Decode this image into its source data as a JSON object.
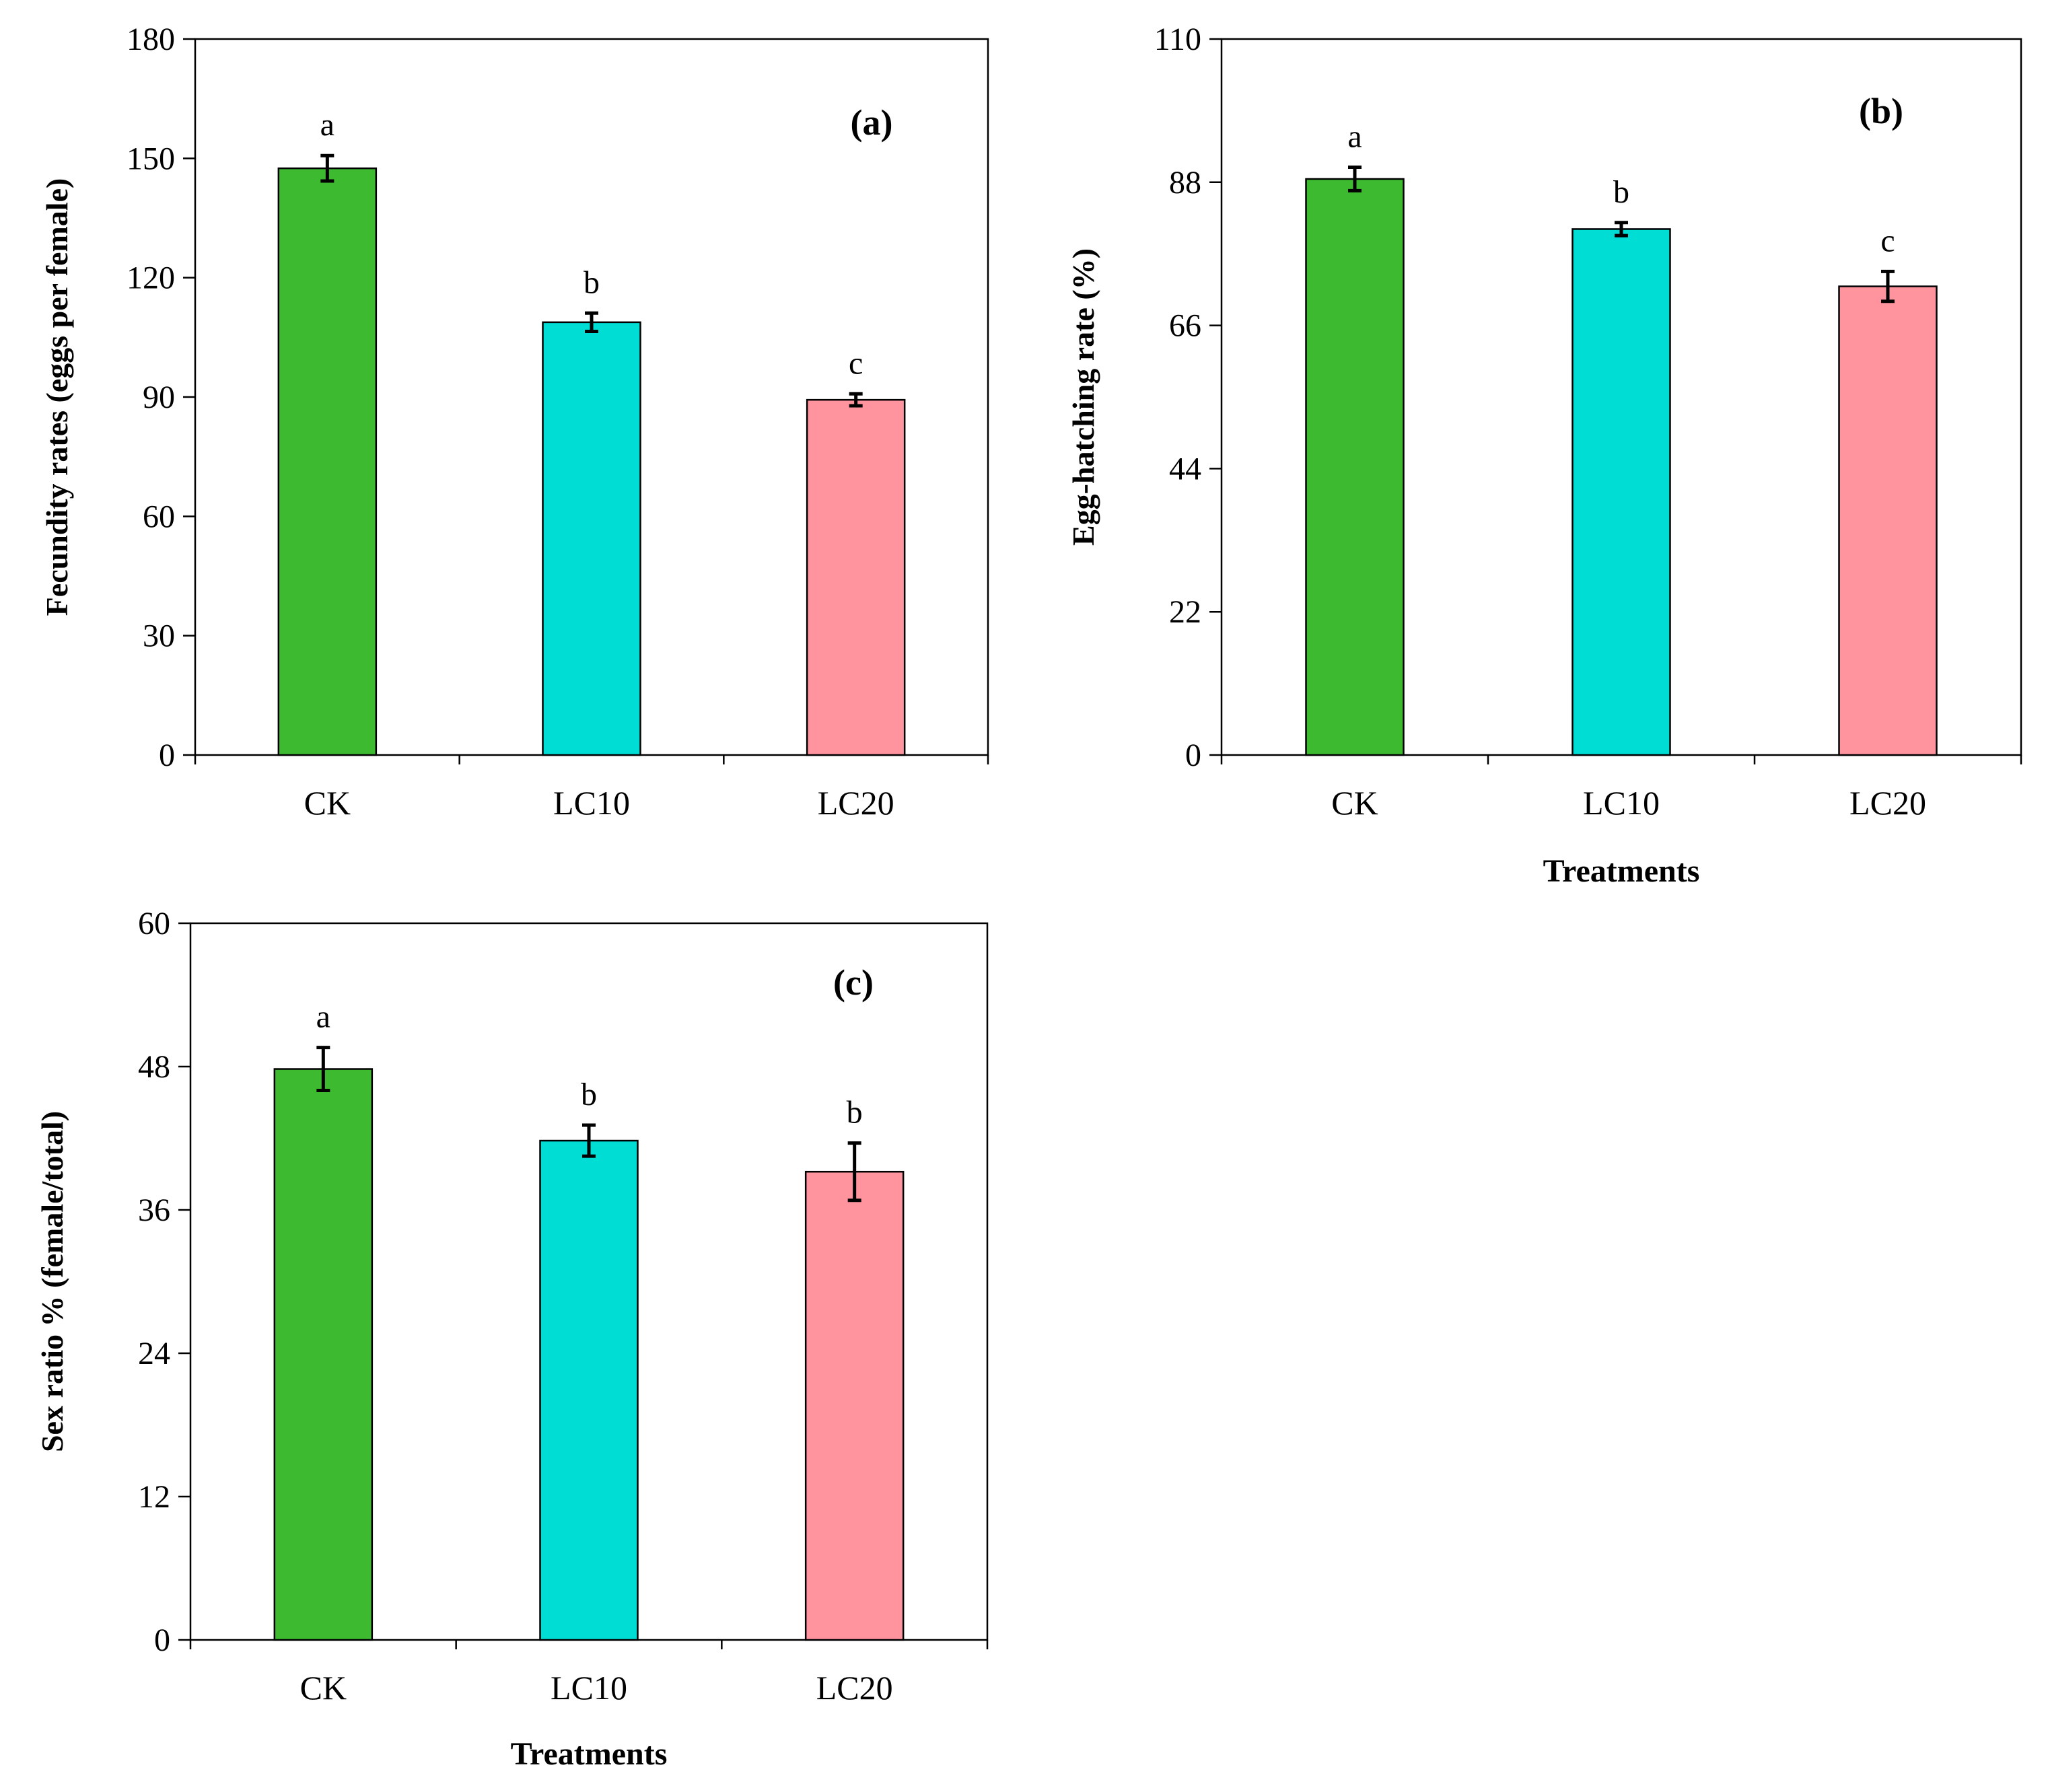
{
  "chart_data": [
    {
      "type": "bar",
      "panel": "(a)",
      "categories": [
        "CK",
        "LC10",
        "LC20"
      ],
      "values": [
        147.5,
        108.8,
        89.3
      ],
      "errors": [
        3.2,
        2.3,
        1.5
      ],
      "letters": [
        "a",
        "b",
        "c"
      ],
      "ylabel": "Fecundity rates (eggs per female)",
      "xlabel": "",
      "ylim": [
        0,
        180
      ],
      "yticks": [
        "0",
        "30",
        "60",
        "90",
        "120",
        "150",
        "180"
      ],
      "colors": [
        "#3dba30",
        "#00ddd4",
        "#ff949e"
      ]
    },
    {
      "type": "bar",
      "panel": "(b)",
      "categories": [
        "CK",
        "LC10",
        "LC20"
      ],
      "values": [
        88.5,
        80.8,
        72.0
      ],
      "errors": [
        1.8,
        1.0,
        2.3
      ],
      "letters": [
        "a",
        "b",
        "c"
      ],
      "ylabel": "Egg-hatching rate (%)",
      "xlabel": "Treatments",
      "ylim": [
        0,
        110
      ],
      "yticks": [
        "0",
        "22",
        "44",
        "66",
        "88",
        "110"
      ],
      "colors": [
        "#3dba30",
        "#00ddd4",
        "#ff949e"
      ]
    },
    {
      "type": "bar",
      "panel": "(c)",
      "categories": [
        "CK",
        "LC10",
        "LC20"
      ],
      "values": [
        47.8,
        41.8,
        39.2
      ],
      "errors": [
        1.8,
        1.3,
        2.4
      ],
      "letters": [
        "a",
        "b",
        "b"
      ],
      "ylabel": "Sex ratio % (female/total)",
      "xlabel": "Treatments",
      "ylim": [
        0,
        60
      ],
      "yticks": [
        "0",
        "12",
        "24",
        "36",
        "48",
        "60"
      ],
      "colors": [
        "#3dba30",
        "#00ddd4",
        "#ff949e"
      ]
    }
  ]
}
